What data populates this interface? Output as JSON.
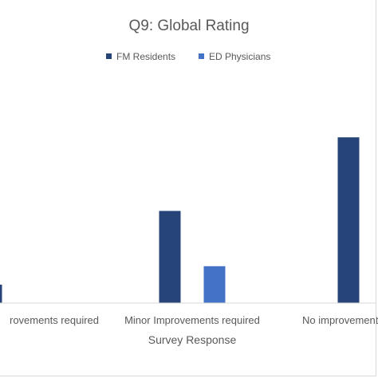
{
  "chart_data": {
    "type": "bar",
    "title": "Q9: Global Rating",
    "xlabel": "Survey Response",
    "ylabel": "",
    "categories": [
      "Major Improvements required",
      "Minor Improvements required",
      "No improvements required"
    ],
    "category_labels_visible": [
      "rovements required",
      "Minor Improvements required",
      "No improvement"
    ],
    "series": [
      {
        "name": "FM Residents",
        "color": "#264478",
        "values": [
          1,
          5,
          9
        ]
      },
      {
        "name": "ED Physicians",
        "color": "#4472c4",
        "values": [
          0,
          2,
          0
        ]
      }
    ],
    "ylim": [
      0,
      11
    ],
    "grid": false,
    "legend_position": "top"
  }
}
